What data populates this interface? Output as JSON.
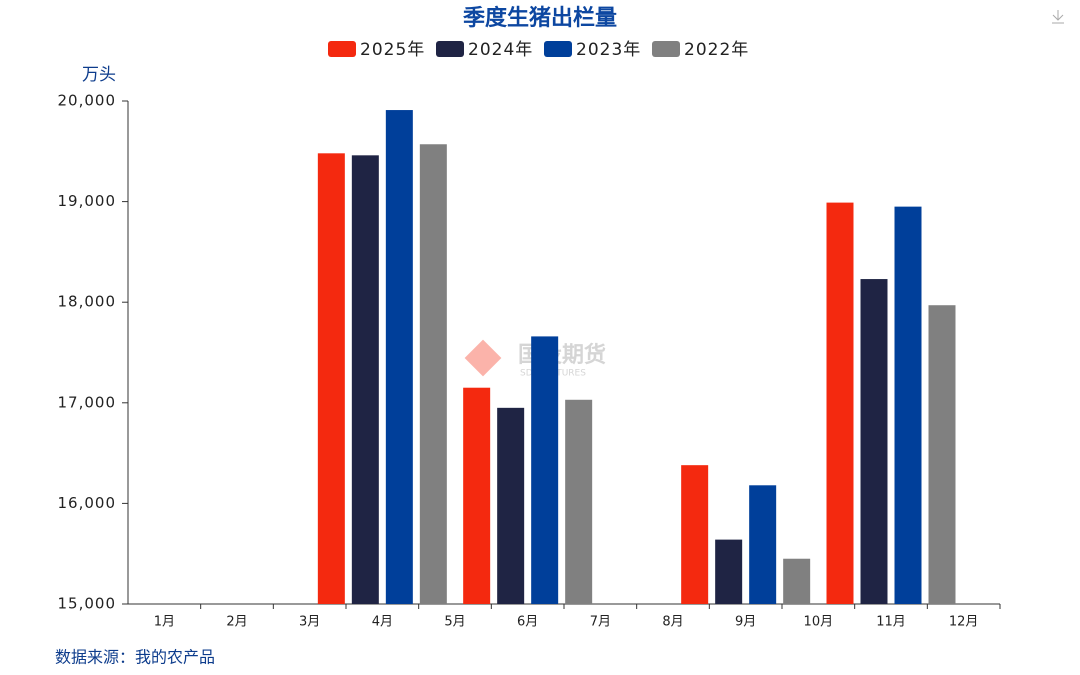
{
  "chart_data": {
    "type": "bar",
    "title": "季度生猪出栏量",
    "y_label": "万头",
    "source": "数据来源：我的农产品",
    "watermark": "国投期货",
    "watermark_sub": "SDIC FUTURES",
    "categories": [
      "1月",
      "2月",
      "3月",
      "4月",
      "5月",
      "6月",
      "7月",
      "8月",
      "9月",
      "10月",
      "11月",
      "12月"
    ],
    "series": [
      {
        "name": "2025年",
        "color": "#f4290f",
        "values": [
          null,
          null,
          null,
          19480,
          null,
          17150,
          null,
          null,
          16380,
          null,
          18990,
          null
        ]
      },
      {
        "name": "2024年",
        "color": "#1f2444",
        "values": [
          null,
          null,
          null,
          19460,
          null,
          16950,
          null,
          null,
          15640,
          null,
          18230,
          null
        ]
      },
      {
        "name": "2023年",
        "color": "#003f9a",
        "values": [
          null,
          null,
          null,
          19910,
          null,
          17660,
          null,
          null,
          16180,
          null,
          18950,
          null
        ]
      },
      {
        "name": "2022年",
        "color": "#808080",
        "values": [
          null,
          null,
          null,
          19570,
          null,
          17030,
          null,
          null,
          15450,
          null,
          17970,
          null
        ]
      }
    ],
    "ylim": [
      15000,
      20000
    ],
    "yticks": [
      {
        "value": 15000,
        "label": "15,000"
      },
      {
        "value": 16000,
        "label": "16,000"
      },
      {
        "value": 17000,
        "label": "17,000"
      },
      {
        "value": 18000,
        "label": "18,000"
      },
      {
        "value": 19000,
        "label": "19,000"
      },
      {
        "value": 20000,
        "label": "20,000"
      }
    ],
    "legend": "top"
  }
}
